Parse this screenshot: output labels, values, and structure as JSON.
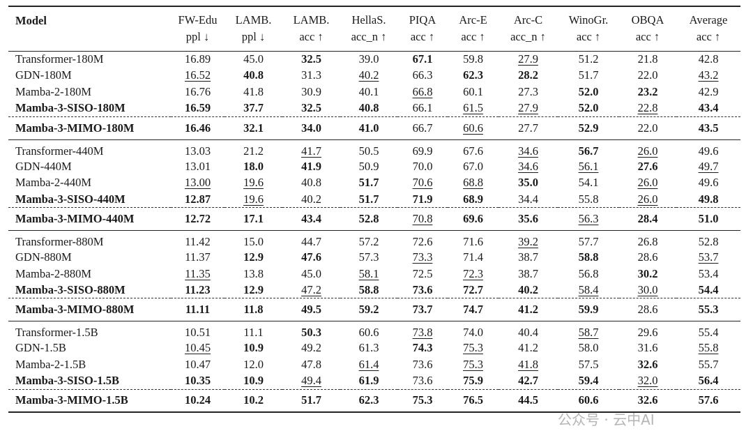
{
  "table": {
    "header": [
      [
        "Model"
      ],
      [
        "FW-Edu",
        "ppl ↓"
      ],
      [
        "LAMB.",
        "ppl ↓"
      ],
      [
        "LAMB.",
        "acc ↑"
      ],
      [
        "HellaS.",
        "acc_n ↑"
      ],
      [
        "PIQA",
        "acc ↑"
      ],
      [
        "Arc-E",
        "acc ↑"
      ],
      [
        "Arc-C",
        "acc_n ↑"
      ],
      [
        "WinoGr.",
        "acc ↑"
      ],
      [
        "OBQA",
        "acc ↑"
      ],
      [
        "Average",
        "acc ↑"
      ]
    ],
    "groups": [
      {
        "rows": [
          {
            "cells": [
              "Transformer-180M",
              "16.89",
              "45.0",
              "32.5",
              "39.0",
              "67.1",
              "59.8",
              "27.9",
              "51.2",
              "21.8",
              "42.8"
            ],
            "bold": [
              3,
              5
            ],
            "underline": [
              7
            ]
          },
          {
            "cells": [
              "GDN-180M",
              "16.52",
              "40.8",
              "31.3",
              "40.2",
              "66.3",
              "62.3",
              "28.2",
              "51.7",
              "22.0",
              "43.2"
            ],
            "bold": [
              2,
              6,
              7
            ],
            "underline": [
              1,
              4,
              10
            ]
          },
          {
            "cells": [
              "Mamba-2-180M",
              "16.76",
              "41.8",
              "30.9",
              "40.1",
              "66.8",
              "60.1",
              "27.3",
              "52.0",
              "23.2",
              "42.9"
            ],
            "bold": [
              8,
              9
            ],
            "underline": [
              5
            ]
          },
          {
            "cells": [
              "Mamba-3-SISO-180M",
              "16.59",
              "37.7",
              "32.5",
              "40.8",
              "66.1",
              "61.5",
              "27.9",
              "52.0",
              "22.8",
              "43.4"
            ],
            "bold": [
              0,
              1,
              2,
              3,
              4,
              8,
              10
            ],
            "underline": [
              6,
              7,
              9
            ]
          },
          {
            "cells": [
              "Mamba-3-MIMO-180M",
              "16.46",
              "32.1",
              "34.0",
              "41.0",
              "66.7",
              "60.6",
              "27.7",
              "52.9",
              "22.0",
              "43.5"
            ],
            "bold": [
              0,
              1,
              2,
              3,
              4,
              8,
              10
            ],
            "underline": [
              6
            ]
          }
        ]
      },
      {
        "rows": [
          {
            "cells": [
              "Transformer-440M",
              "13.03",
              "21.2",
              "41.7",
              "50.5",
              "69.9",
              "67.6",
              "34.6",
              "56.7",
              "26.0",
              "49.6"
            ],
            "bold": [
              8
            ],
            "underline": [
              3,
              7,
              9
            ]
          },
          {
            "cells": [
              "GDN-440M",
              "13.01",
              "18.0",
              "41.9",
              "50.9",
              "70.0",
              "67.0",
              "34.6",
              "56.1",
              "27.6",
              "49.7"
            ],
            "bold": [
              2,
              3,
              9
            ],
            "underline": [
              7,
              8,
              10
            ]
          },
          {
            "cells": [
              "Mamba-2-440M",
              "13.00",
              "19.6",
              "40.8",
              "51.7",
              "70.6",
              "68.8",
              "35.0",
              "54.1",
              "26.0",
              "49.6"
            ],
            "bold": [
              4,
              7
            ],
            "underline": [
              1,
              2,
              5,
              6,
              9
            ]
          },
          {
            "cells": [
              "Mamba-3-SISO-440M",
              "12.87",
              "19.6",
              "40.2",
              "51.7",
              "71.9",
              "68.9",
              "34.4",
              "55.8",
              "26.0",
              "49.8"
            ],
            "bold": [
              0,
              1,
              4,
              5,
              6,
              10
            ],
            "underline": [
              2,
              9
            ]
          },
          {
            "cells": [
              "Mamba-3-MIMO-440M",
              "12.72",
              "17.1",
              "43.4",
              "52.8",
              "70.8",
              "69.6",
              "35.6",
              "56.3",
              "28.4",
              "51.0"
            ],
            "bold": [
              0,
              1,
              2,
              3,
              4,
              6,
              7,
              9,
              10
            ],
            "underline": [
              5,
              8
            ]
          }
        ]
      },
      {
        "rows": [
          {
            "cells": [
              "Transformer-880M",
              "11.42",
              "15.0",
              "44.7",
              "57.2",
              "72.6",
              "71.6",
              "39.2",
              "57.7",
              "26.8",
              "52.8"
            ],
            "underline": [
              7
            ]
          },
          {
            "cells": [
              "GDN-880M",
              "11.37",
              "12.9",
              "47.6",
              "57.3",
              "73.3",
              "71.4",
              "38.7",
              "58.8",
              "28.6",
              "53.7"
            ],
            "bold": [
              2,
              3,
              8
            ],
            "underline": [
              5,
              10
            ]
          },
          {
            "cells": [
              "Mamba-2-880M",
              "11.35",
              "13.8",
              "45.0",
              "58.1",
              "72.5",
              "72.3",
              "38.7",
              "56.8",
              "30.2",
              "53.4"
            ],
            "bold": [
              9
            ],
            "underline": [
              1,
              4,
              6
            ]
          },
          {
            "cells": [
              "Mamba-3-SISO-880M",
              "11.23",
              "12.9",
              "47.2",
              "58.8",
              "73.6",
              "72.7",
              "40.2",
              "58.4",
              "30.0",
              "54.4"
            ],
            "bold": [
              0,
              1,
              2,
              4,
              5,
              6,
              7,
              10
            ],
            "underline": [
              3,
              8,
              9
            ]
          },
          {
            "cells": [
              "Mamba-3-MIMO-880M",
              "11.11",
              "11.8",
              "49.5",
              "59.2",
              "73.7",
              "74.7",
              "41.2",
              "59.9",
              "28.6",
              "55.3"
            ],
            "bold": [
              0,
              1,
              2,
              3,
              4,
              5,
              6,
              7,
              8,
              10
            ]
          }
        ]
      },
      {
        "rows": [
          {
            "cells": [
              "Transformer-1.5B",
              "10.51",
              "11.1",
              "50.3",
              "60.6",
              "73.8",
              "74.0",
              "40.4",
              "58.7",
              "29.6",
              "55.4"
            ],
            "bold": [
              3
            ],
            "underline": [
              5,
              8
            ]
          },
          {
            "cells": [
              "GDN-1.5B",
              "10.45",
              "10.9",
              "49.2",
              "61.3",
              "74.3",
              "75.3",
              "41.2",
              "58.0",
              "31.6",
              "55.8"
            ],
            "bold": [
              2,
              5
            ],
            "underline": [
              1,
              6,
              10
            ]
          },
          {
            "cells": [
              "Mamba-2-1.5B",
              "10.47",
              "12.0",
              "47.8",
              "61.4",
              "73.6",
              "75.3",
              "41.8",
              "57.5",
              "32.6",
              "55.7"
            ],
            "bold": [
              9
            ],
            "underline": [
              4,
              6,
              7
            ]
          },
          {
            "cells": [
              "Mamba-3-SISO-1.5B",
              "10.35",
              "10.9",
              "49.4",
              "61.9",
              "73.6",
              "75.9",
              "42.7",
              "59.4",
              "32.0",
              "56.4"
            ],
            "bold": [
              0,
              1,
              2,
              4,
              6,
              7,
              8,
              10
            ],
            "underline": [
              3,
              9
            ]
          },
          {
            "cells": [
              "Mamba-3-MIMO-1.5B",
              "10.24",
              "10.2",
              "51.7",
              "62.3",
              "75.3",
              "76.5",
              "44.5",
              "60.6",
              "32.6",
              "57.6"
            ],
            "bold": [
              0,
              1,
              2,
              3,
              4,
              5,
              6,
              7,
              8,
              9,
              10
            ]
          }
        ]
      }
    ]
  },
  "watermark": "公众号 · 云中AI"
}
